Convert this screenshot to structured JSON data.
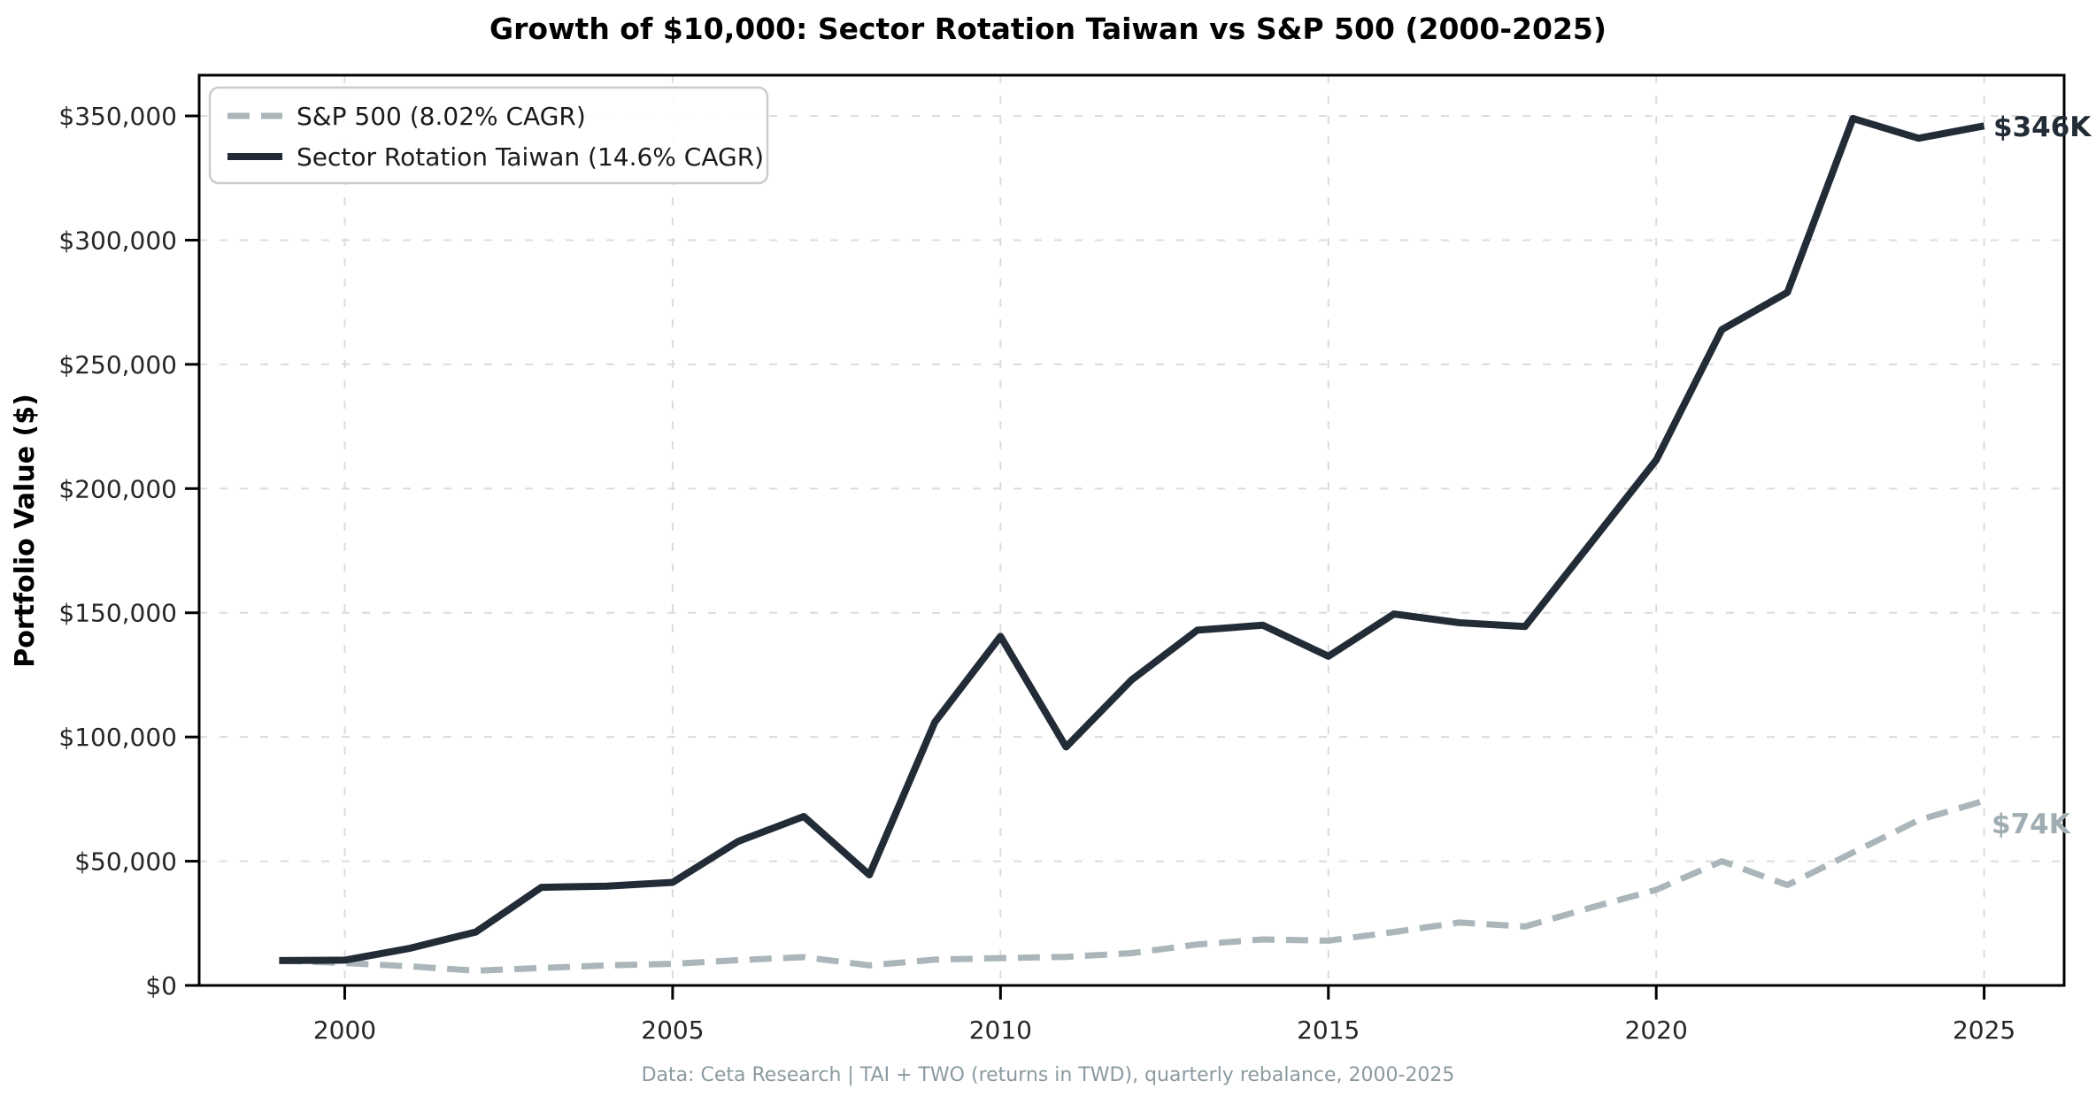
{
  "title": "Growth of $10,000: Sector Rotation Taiwan vs S&P 500 (2000-2025)",
  "y_axis": {
    "label": "Portfolio Value ($)"
  },
  "legend": {
    "items": [
      {
        "label": "S&P 500 (8.02% CAGR)",
        "style": "dashed"
      },
      {
        "label": "Sector Rotation Taiwan (14.6% CAGR)",
        "style": "solid"
      }
    ]
  },
  "annotations": {
    "taiwan_end": "$346K",
    "sp500_end": "$74K"
  },
  "footer": "Data: Ceta Research | TAI + TWO (returns in TWD), quarterly rebalance, 2000-2025",
  "colors": {
    "taiwan_line": "#222c37",
    "sp500_line": "#aab6ba",
    "sp500_label": "#9fadb3",
    "grid": "#dcdcdc",
    "spine": "#000000",
    "footer": "#8b9aa0",
    "background": "#ffffff",
    "legend_border": "#cccccc"
  },
  "chart_data": {
    "type": "line",
    "title": "Growth of $10,000: Sector Rotation Taiwan vs S&P 500 (2000-2025)",
    "xlabel": "",
    "ylabel": "Portfolio Value ($)",
    "grid": true,
    "legend_position": "upper left",
    "xlim": [
      1997.78,
      2026.22
    ],
    "ylim": [
      0,
      366400
    ],
    "x": [
      1999,
      2000,
      2001,
      2002,
      2003,
      2004,
      2005,
      2006,
      2007,
      2008,
      2009,
      2010,
      2011,
      2012,
      2013,
      2014,
      2015,
      2016,
      2017,
      2018,
      2019,
      2020,
      2021,
      2022,
      2023,
      2024,
      2025
    ],
    "series": [
      {
        "name": "S&P 500 (8.02% CAGR)",
        "style": "dashed",
        "color": "#aab6ba",
        "end_label": "$74K",
        "values": [
          10000,
          9000,
          7700,
          5900,
          7000,
          8100,
          8700,
          10200,
          11400,
          8100,
          10400,
          11000,
          11500,
          13000,
          16500,
          18500,
          18000,
          21500,
          25300,
          23700,
          31300,
          38500,
          50000,
          40400,
          53500,
          66500,
          74300
        ]
      },
      {
        "name": "Sector Rotation Taiwan (14.6% CAGR)",
        "style": "solid",
        "color": "#222c37",
        "end_label": "$346K",
        "values": [
          10000,
          10200,
          15000,
          21500,
          39500,
          40000,
          41500,
          58000,
          68000,
          44500,
          106000,
          140500,
          96000,
          123000,
          143000,
          145000,
          132500,
          149500,
          146000,
          144500,
          178000,
          211500,
          264000,
          279000,
          349000,
          341000,
          346000
        ]
      }
    ],
    "y_ticks": [
      {
        "value": 0,
        "label": "$0"
      },
      {
        "value": 50000,
        "label": "$50,000"
      },
      {
        "value": 100000,
        "label": "$100,000"
      },
      {
        "value": 150000,
        "label": "$150,000"
      },
      {
        "value": 200000,
        "label": "$200,000"
      },
      {
        "value": 250000,
        "label": "$250,000"
      },
      {
        "value": 300000,
        "label": "$300,000"
      },
      {
        "value": 350000,
        "label": "$350,000"
      }
    ],
    "x_ticks": [
      {
        "value": 2000,
        "label": "2000"
      },
      {
        "value": 2005,
        "label": "2005"
      },
      {
        "value": 2010,
        "label": "2010"
      },
      {
        "value": 2015,
        "label": "2015"
      },
      {
        "value": 2020,
        "label": "2020"
      },
      {
        "value": 2025,
        "label": "2025"
      }
    ]
  }
}
